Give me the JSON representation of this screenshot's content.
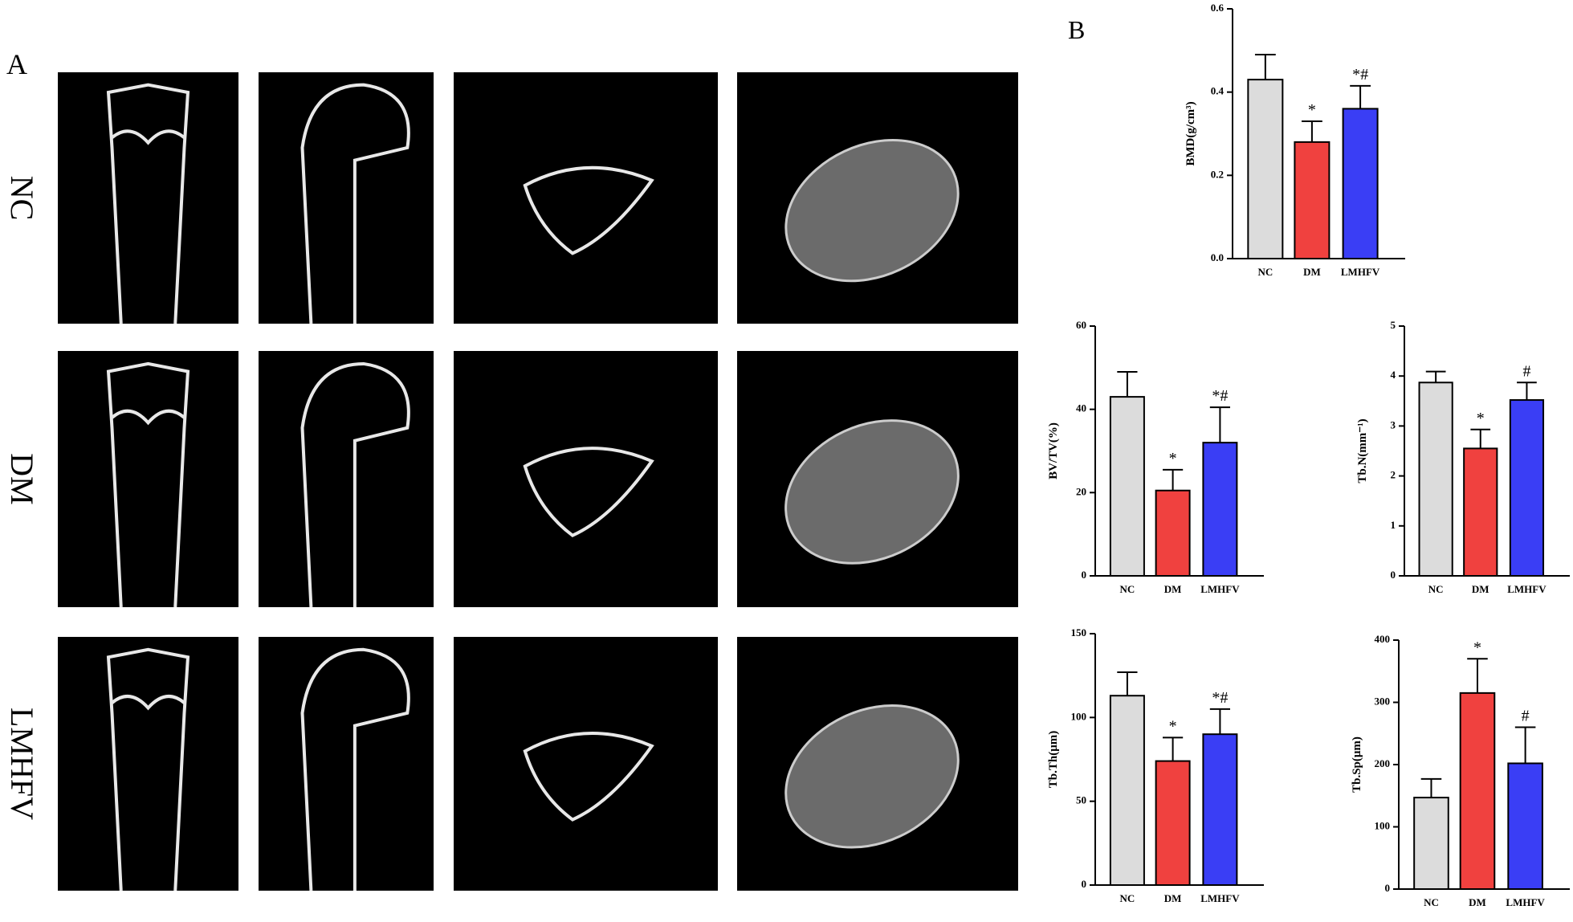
{
  "panels": {
    "a_label": "A",
    "b_label": "B",
    "row_labels": [
      "NC",
      "DM",
      "LMHFV"
    ]
  },
  "chart_data": [
    {
      "type": "bar",
      "ylabel": "BMD(g/cm³)",
      "categories": [
        "NC",
        "DM",
        "LMHFV"
      ],
      "values": [
        0.43,
        0.28,
        0.36
      ],
      "errors": [
        0.06,
        0.05,
        0.055
      ],
      "annotations": [
        null,
        "*",
        "*#"
      ],
      "colors": [
        "#dcdcdc",
        "#f0413f",
        "#3a3ef5"
      ],
      "ylim": [
        0,
        0.6
      ],
      "yticks": [
        {
          "value": 0,
          "label": "0.0"
        },
        0.2,
        0.4,
        0.6
      ]
    },
    {
      "type": "bar",
      "ylabel": "BV/TV(%)",
      "categories": [
        "NC",
        "DM",
        "LMHFV"
      ],
      "values": [
        43,
        20.5,
        32
      ],
      "errors": [
        6,
        5,
        8.5
      ],
      "annotations": [
        null,
        "*",
        "*#"
      ],
      "colors": [
        "#dcdcdc",
        "#f0413f",
        "#3a3ef5"
      ],
      "ylim": [
        0,
        60
      ],
      "yticks": [
        0,
        20,
        40,
        60
      ]
    },
    {
      "type": "bar",
      "ylabel": "Tb.N(mm⁻¹)",
      "categories": [
        "NC",
        "DM",
        "LMHFV"
      ],
      "values": [
        3.87,
        2.55,
        3.52
      ],
      "errors": [
        0.22,
        0.38,
        0.35
      ],
      "annotations": [
        null,
        "*",
        "#"
      ],
      "colors": [
        "#dcdcdc",
        "#f0413f",
        "#3a3ef5"
      ],
      "ylim": [
        0,
        5
      ],
      "yticks": [
        0,
        1,
        2,
        3,
        4,
        5
      ]
    },
    {
      "type": "bar",
      "ylabel": "Tb.Th(μm)",
      "categories": [
        "NC",
        "DM",
        "LMHFV"
      ],
      "values": [
        113,
        74,
        90
      ],
      "errors": [
        14,
        14,
        15
      ],
      "annotations": [
        null,
        "*",
        "*#"
      ],
      "colors": [
        "#dcdcdc",
        "#f0413f",
        "#3a3ef5"
      ],
      "ylim": [
        0,
        150
      ],
      "yticks": [
        0,
        50,
        100,
        150
      ]
    },
    {
      "type": "bar",
      "ylabel": "Tb.Sp(μm)",
      "categories": [
        "NC",
        "DM",
        "LMHFV"
      ],
      "values": [
        147,
        315,
        202
      ],
      "errors": [
        30,
        55,
        58
      ],
      "annotations": [
        null,
        "*",
        "#"
      ],
      "colors": [
        "#dcdcdc",
        "#f0413f",
        "#3a3ef5"
      ],
      "ylim": [
        0,
        400
      ],
      "yticks": [
        0,
        100,
        200,
        300,
        400
      ]
    }
  ]
}
